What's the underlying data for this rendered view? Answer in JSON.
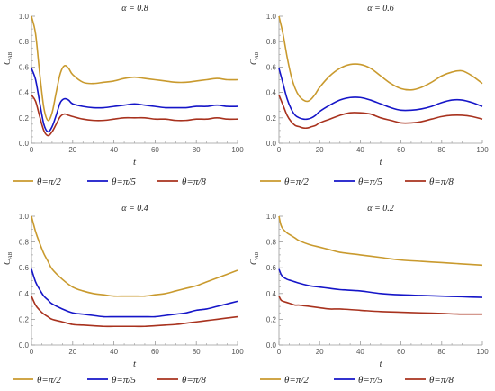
{
  "colors": {
    "gold": "#C99A2E",
    "blue": "#1515C8",
    "red": "#A8321E",
    "axis": "#9a9a9a"
  },
  "chart_data": [
    {
      "type": "line",
      "title": "α = 0.8",
      "xlabel": "t",
      "ylabel": "C_AB",
      "xlim": [
        0,
        100
      ],
      "ylim": [
        0,
        1.0
      ],
      "xticks": [
        "0",
        "20",
        "40",
        "60",
        "80",
        "100"
      ],
      "yticks": [
        "0.0",
        "0.2",
        "0.4",
        "0.6",
        "0.8",
        "1.0"
      ],
      "legend": "bottom",
      "series": [
        {
          "name": "θ=π/2",
          "color": "gold",
          "x": [
            0,
            2,
            4,
            6,
            8,
            10,
            12,
            14,
            16,
            18,
            20,
            25,
            30,
            35,
            40,
            45,
            50,
            55,
            60,
            65,
            70,
            75,
            80,
            85,
            90,
            95,
            100
          ],
          "y": [
            1.0,
            0.86,
            0.55,
            0.28,
            0.18,
            0.24,
            0.4,
            0.55,
            0.61,
            0.59,
            0.54,
            0.48,
            0.47,
            0.48,
            0.49,
            0.51,
            0.52,
            0.51,
            0.5,
            0.49,
            0.48,
            0.48,
            0.49,
            0.5,
            0.51,
            0.5,
            0.5
          ]
        },
        {
          "name": "θ=π/5",
          "color": "blue",
          "x": [
            0,
            2,
            4,
            6,
            8,
            10,
            12,
            14,
            16,
            18,
            20,
            25,
            30,
            35,
            40,
            45,
            50,
            55,
            60,
            65,
            70,
            75,
            80,
            85,
            90,
            95,
            100
          ],
          "y": [
            0.59,
            0.5,
            0.32,
            0.15,
            0.09,
            0.13,
            0.22,
            0.32,
            0.35,
            0.34,
            0.31,
            0.29,
            0.28,
            0.28,
            0.29,
            0.3,
            0.31,
            0.3,
            0.29,
            0.28,
            0.28,
            0.28,
            0.29,
            0.29,
            0.3,
            0.29,
            0.29
          ]
        },
        {
          "name": "θ=π/8",
          "color": "red",
          "x": [
            0,
            2,
            4,
            6,
            8,
            10,
            12,
            14,
            16,
            18,
            20,
            25,
            30,
            35,
            40,
            45,
            50,
            55,
            60,
            65,
            70,
            75,
            80,
            85,
            90,
            95,
            100
          ],
          "y": [
            0.38,
            0.33,
            0.21,
            0.1,
            0.06,
            0.09,
            0.15,
            0.21,
            0.23,
            0.22,
            0.21,
            0.19,
            0.18,
            0.18,
            0.19,
            0.2,
            0.2,
            0.2,
            0.19,
            0.19,
            0.18,
            0.18,
            0.19,
            0.19,
            0.2,
            0.19,
            0.19
          ]
        }
      ]
    },
    {
      "type": "line",
      "title": "α = 0.6",
      "xlabel": "t",
      "ylabel": "C_AB",
      "xlim": [
        0,
        100
      ],
      "ylim": [
        0,
        1.0
      ],
      "xticks": [
        "0",
        "20",
        "40",
        "60",
        "80",
        "100"
      ],
      "yticks": [
        "0.0",
        "0.2",
        "0.4",
        "0.6",
        "0.8",
        "1.0"
      ],
      "legend": "bottom",
      "series": [
        {
          "name": "θ=π/2",
          "color": "gold",
          "x": [
            0,
            2,
            4,
            6,
            8,
            10,
            12,
            14,
            16,
            18,
            20,
            25,
            30,
            35,
            40,
            45,
            50,
            55,
            60,
            65,
            70,
            75,
            80,
            85,
            90,
            95,
            100
          ],
          "y": [
            1.0,
            0.86,
            0.68,
            0.53,
            0.43,
            0.37,
            0.34,
            0.33,
            0.35,
            0.39,
            0.44,
            0.53,
            0.59,
            0.62,
            0.62,
            0.59,
            0.53,
            0.47,
            0.43,
            0.42,
            0.44,
            0.48,
            0.53,
            0.56,
            0.57,
            0.53,
            0.47
          ]
        },
        {
          "name": "θ=π/5",
          "color": "blue",
          "x": [
            0,
            2,
            4,
            6,
            8,
            10,
            12,
            14,
            16,
            18,
            20,
            25,
            30,
            35,
            40,
            45,
            50,
            55,
            60,
            65,
            70,
            75,
            80,
            85,
            90,
            95,
            100
          ],
          "y": [
            0.59,
            0.47,
            0.35,
            0.27,
            0.22,
            0.2,
            0.19,
            0.19,
            0.2,
            0.22,
            0.25,
            0.3,
            0.34,
            0.36,
            0.36,
            0.34,
            0.31,
            0.28,
            0.26,
            0.26,
            0.27,
            0.29,
            0.32,
            0.34,
            0.34,
            0.32,
            0.29
          ]
        },
        {
          "name": "θ=π/8",
          "color": "red",
          "x": [
            0,
            2,
            4,
            6,
            8,
            10,
            12,
            14,
            16,
            18,
            20,
            25,
            30,
            35,
            40,
            45,
            50,
            55,
            60,
            65,
            70,
            75,
            80,
            85,
            90,
            95,
            100
          ],
          "y": [
            0.38,
            0.3,
            0.22,
            0.17,
            0.14,
            0.13,
            0.12,
            0.12,
            0.13,
            0.14,
            0.16,
            0.19,
            0.22,
            0.24,
            0.24,
            0.23,
            0.2,
            0.18,
            0.16,
            0.16,
            0.17,
            0.19,
            0.21,
            0.22,
            0.22,
            0.21,
            0.19
          ]
        }
      ]
    },
    {
      "type": "line",
      "title": "α = 0.4",
      "xlabel": "t",
      "ylabel": "C_AB",
      "xlim": [
        0,
        100
      ],
      "ylim": [
        0,
        1.0
      ],
      "xticks": [
        "0",
        "20",
        "40",
        "60",
        "80",
        "100"
      ],
      "yticks": [
        "0.0",
        "0.2",
        "0.4",
        "0.6",
        "0.8",
        "1.0"
      ],
      "legend": "bottom",
      "series": [
        {
          "name": "θ=π/2",
          "color": "gold",
          "x": [
            0,
            2,
            4,
            6,
            8,
            10,
            15,
            20,
            25,
            30,
            35,
            40,
            45,
            50,
            55,
            60,
            65,
            70,
            75,
            80,
            85,
            90,
            95,
            100
          ],
          "y": [
            1.0,
            0.88,
            0.79,
            0.71,
            0.65,
            0.59,
            0.51,
            0.45,
            0.42,
            0.4,
            0.39,
            0.38,
            0.38,
            0.38,
            0.38,
            0.39,
            0.4,
            0.42,
            0.44,
            0.46,
            0.49,
            0.52,
            0.55,
            0.58
          ]
        },
        {
          "name": "θ=π/5",
          "color": "blue",
          "x": [
            0,
            2,
            4,
            6,
            8,
            10,
            15,
            20,
            25,
            30,
            35,
            40,
            45,
            50,
            55,
            60,
            65,
            70,
            75,
            80,
            85,
            90,
            95,
            100
          ],
          "y": [
            0.59,
            0.49,
            0.43,
            0.38,
            0.35,
            0.32,
            0.28,
            0.25,
            0.24,
            0.23,
            0.22,
            0.22,
            0.22,
            0.22,
            0.22,
            0.22,
            0.23,
            0.24,
            0.25,
            0.27,
            0.28,
            0.3,
            0.32,
            0.34
          ]
        },
        {
          "name": "θ=π/8",
          "color": "red",
          "x": [
            0,
            2,
            4,
            6,
            8,
            10,
            15,
            20,
            25,
            30,
            35,
            40,
            45,
            50,
            55,
            60,
            65,
            70,
            75,
            80,
            85,
            90,
            95,
            100
          ],
          "y": [
            0.38,
            0.31,
            0.27,
            0.24,
            0.22,
            0.2,
            0.18,
            0.16,
            0.155,
            0.15,
            0.145,
            0.145,
            0.145,
            0.145,
            0.145,
            0.15,
            0.155,
            0.16,
            0.17,
            0.18,
            0.19,
            0.2,
            0.21,
            0.22
          ]
        }
      ]
    },
    {
      "type": "line",
      "title": "α = 0.2",
      "xlabel": "t",
      "ylabel": "C_AB",
      "xlim": [
        0,
        100
      ],
      "ylim": [
        0,
        1.0
      ],
      "xticks": [
        "0",
        "20",
        "40",
        "60",
        "80",
        "100"
      ],
      "yticks": [
        "0.0",
        "0.2",
        "0.4",
        "0.6",
        "0.8",
        "1.0"
      ],
      "legend": "bottom",
      "series": [
        {
          "name": "θ=π/2",
          "color": "gold",
          "x": [
            0,
            1,
            2,
            4,
            6,
            8,
            10,
            15,
            20,
            25,
            30,
            40,
            50,
            60,
            70,
            80,
            90,
            100
          ],
          "y": [
            1.0,
            0.93,
            0.9,
            0.87,
            0.85,
            0.83,
            0.81,
            0.78,
            0.76,
            0.74,
            0.72,
            0.7,
            0.68,
            0.66,
            0.65,
            0.64,
            0.63,
            0.62
          ]
        },
        {
          "name": "θ=π/5",
          "color": "blue",
          "x": [
            0,
            1,
            2,
            4,
            6,
            8,
            10,
            15,
            20,
            25,
            30,
            40,
            50,
            60,
            70,
            80,
            90,
            100
          ],
          "y": [
            0.59,
            0.55,
            0.53,
            0.51,
            0.5,
            0.49,
            0.48,
            0.46,
            0.45,
            0.44,
            0.43,
            0.42,
            0.4,
            0.39,
            0.385,
            0.38,
            0.375,
            0.37
          ]
        },
        {
          "name": "θ=π/8",
          "color": "red",
          "x": [
            0,
            1,
            2,
            4,
            6,
            8,
            10,
            15,
            20,
            25,
            30,
            40,
            50,
            60,
            70,
            80,
            90,
            100
          ],
          "y": [
            0.38,
            0.35,
            0.34,
            0.33,
            0.32,
            0.31,
            0.31,
            0.3,
            0.29,
            0.28,
            0.28,
            0.27,
            0.26,
            0.255,
            0.25,
            0.245,
            0.24,
            0.24
          ]
        }
      ]
    }
  ]
}
